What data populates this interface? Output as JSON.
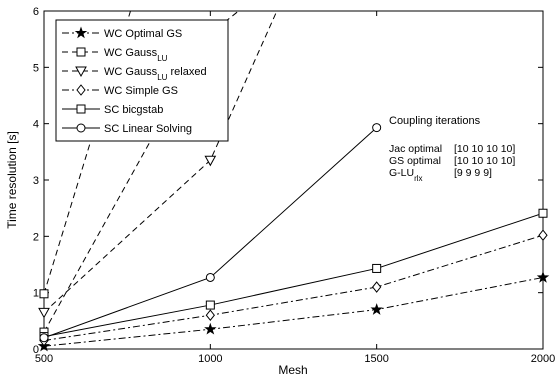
{
  "chart_data": {
    "type": "line",
    "xlabel": "Mesh",
    "ylabel": "Time resolution [s]",
    "xlim": [
      500,
      2000
    ],
    "ylim": [
      0,
      6
    ],
    "x": [
      500,
      1000,
      1500,
      2000
    ],
    "xticks": [
      "500",
      "1000",
      "1500",
      "2000"
    ],
    "yticks": [
      "0",
      "1",
      "2",
      "3",
      "4",
      "5",
      "6"
    ],
    "grid": false,
    "legend_position": "top-left",
    "series": [
      {
        "name": "WC Optimal GS",
        "name_main": "WC Optimal GS",
        "name_sub": "",
        "name_tail": "",
        "marker": "star",
        "dash": "dashdot",
        "values": [
          0.05,
          0.35,
          0.7,
          1.27
        ]
      },
      {
        "name": "WC Gauss LU",
        "name_main": "WC Gauss",
        "name_sub": "LU",
        "name_tail": "",
        "marker": "square",
        "dash": "dashed",
        "values": [
          0.3,
          5.6,
          null,
          null
        ],
        "x_extra": [
          [
            1085,
            6.0
          ]
        ]
      },
      {
        "name": "WC Gauss LU relaxed",
        "name_main": "WC Gauss",
        "name_sub": "LU",
        "name_tail": " relaxed",
        "marker": "triangle-down",
        "dash": "dashed",
        "values": [
          0.65,
          3.35,
          null,
          null
        ],
        "x_extra": [
          [
            1200,
            6.0
          ]
        ]
      },
      {
        "name": "WC Simple GS",
        "name_main": "WC Simple GS",
        "name_sub": "",
        "name_tail": "",
        "marker": "diamond",
        "dash": "dashdot",
        "values": [
          0.15,
          0.6,
          1.1,
          2.02
        ]
      },
      {
        "name": "SC bicgstab",
        "name_main": "SC bicgstab",
        "name_sub": "",
        "name_tail": "",
        "marker": "square",
        "dash": "solid",
        "values": [
          0.22,
          0.78,
          1.43,
          2.41
        ]
      },
      {
        "name": "SC Linear Solving",
        "name_main": "SC Linear Solving",
        "name_sub": "",
        "name_tail": "",
        "marker": "circle",
        "dash": "solid",
        "values": [
          0.2,
          1.27,
          3.93,
          null
        ]
      }
    ],
    "outlier_segment": {
      "series": "WC Gauss LU",
      "from": [
        500,
        0.98
      ],
      "to": [
        760,
        6.0
      ],
      "marker": "square"
    },
    "annotation": {
      "title": "Coupling iterations",
      "rows": [
        {
          "label": "Jac optimal",
          "label_sub": "",
          "value": "[10 10 10 10]"
        },
        {
          "label": "GS optimal",
          "label_sub": "",
          "value": "[10 10 10 10]"
        },
        {
          "label": "G-LU",
          "label_sub": "rlx",
          "value": "[9  9  9  9]"
        }
      ]
    }
  }
}
